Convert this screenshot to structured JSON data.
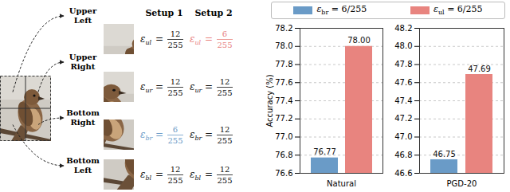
{
  "diagram": {
    "columns": [
      "Setup 1",
      "Setup 2"
    ],
    "quadrants": [
      {
        "label": "Upper Left",
        "setup1": {
          "symbol": "ε",
          "subscript": "ul",
          "numerator": 12,
          "denominator": 255
        },
        "setup2": {
          "symbol": "ε",
          "subscript": "ul",
          "numerator": 6,
          "denominator": 255,
          "color": "#e8847f"
        }
      },
      {
        "label": "Upper Right",
        "setup1": {
          "symbol": "ε",
          "subscript": "ur",
          "numerator": 12,
          "denominator": 255
        },
        "setup2": {
          "symbol": "ε",
          "subscript": "ur",
          "numerator": 12,
          "denominator": 255
        }
      },
      {
        "label": "Bottom Right",
        "setup1": {
          "symbol": "ε",
          "subscript": "br",
          "numerator": 6,
          "denominator": 255,
          "color": "#6a9bc7"
        },
        "setup2": {
          "symbol": "ε",
          "subscript": "br",
          "numerator": 12,
          "denominator": 255
        }
      },
      {
        "label": "Bottom Left",
        "setup1": {
          "symbol": "ε",
          "subscript": "bl",
          "numerator": 12,
          "denominator": 255
        },
        "setup2": {
          "symbol": "ε",
          "subscript": "bl",
          "numerator": 12,
          "denominator": 255
        }
      }
    ]
  },
  "chart_data": [
    {
      "type": "bar",
      "y_label": "Accuracy (%)",
      "categories": [
        "Natural"
      ],
      "series": [
        {
          "name": "εbr = 6/255",
          "color": "#6a9bc7",
          "values": [
            76.77
          ],
          "value_labels": [
            "76.77"
          ]
        },
        {
          "name": "εul = 6/255",
          "color": "#e8847f",
          "values": [
            78.0
          ],
          "value_labels": [
            "78.00"
          ]
        }
      ],
      "ylim": [
        76.6,
        78.2
      ],
      "yticks": [
        76.6,
        76.8,
        {
          "value": 77,
          "label": "77.0"
        },
        77.2,
        77.4,
        77.6,
        77.8,
        {
          "value": 78,
          "label": "78.0"
        },
        78.2
      ],
      "grid": true,
      "data_labels": true,
      "legend": "top"
    },
    {
      "type": "bar",
      "categories": [
        "PGD-20"
      ],
      "series": [
        {
          "name": "εbr = 6/255",
          "color": "#6a9bc7",
          "values": [
            46.75
          ],
          "value_labels": [
            "46.75"
          ]
        },
        {
          "name": "εul = 6/255",
          "color": "#e8847f",
          "values": [
            47.69
          ],
          "value_labels": [
            "47.69"
          ]
        }
      ],
      "ylim": [
        46.6,
        48.2
      ],
      "yticks": [
        46.6,
        46.8,
        {
          "value": 47,
          "label": "47.0"
        },
        47.2,
        47.4,
        47.6,
        47.8,
        {
          "value": 48,
          "label": "48.0"
        },
        48.2
      ],
      "grid": true,
      "data_labels": true,
      "legend": "top"
    }
  ]
}
